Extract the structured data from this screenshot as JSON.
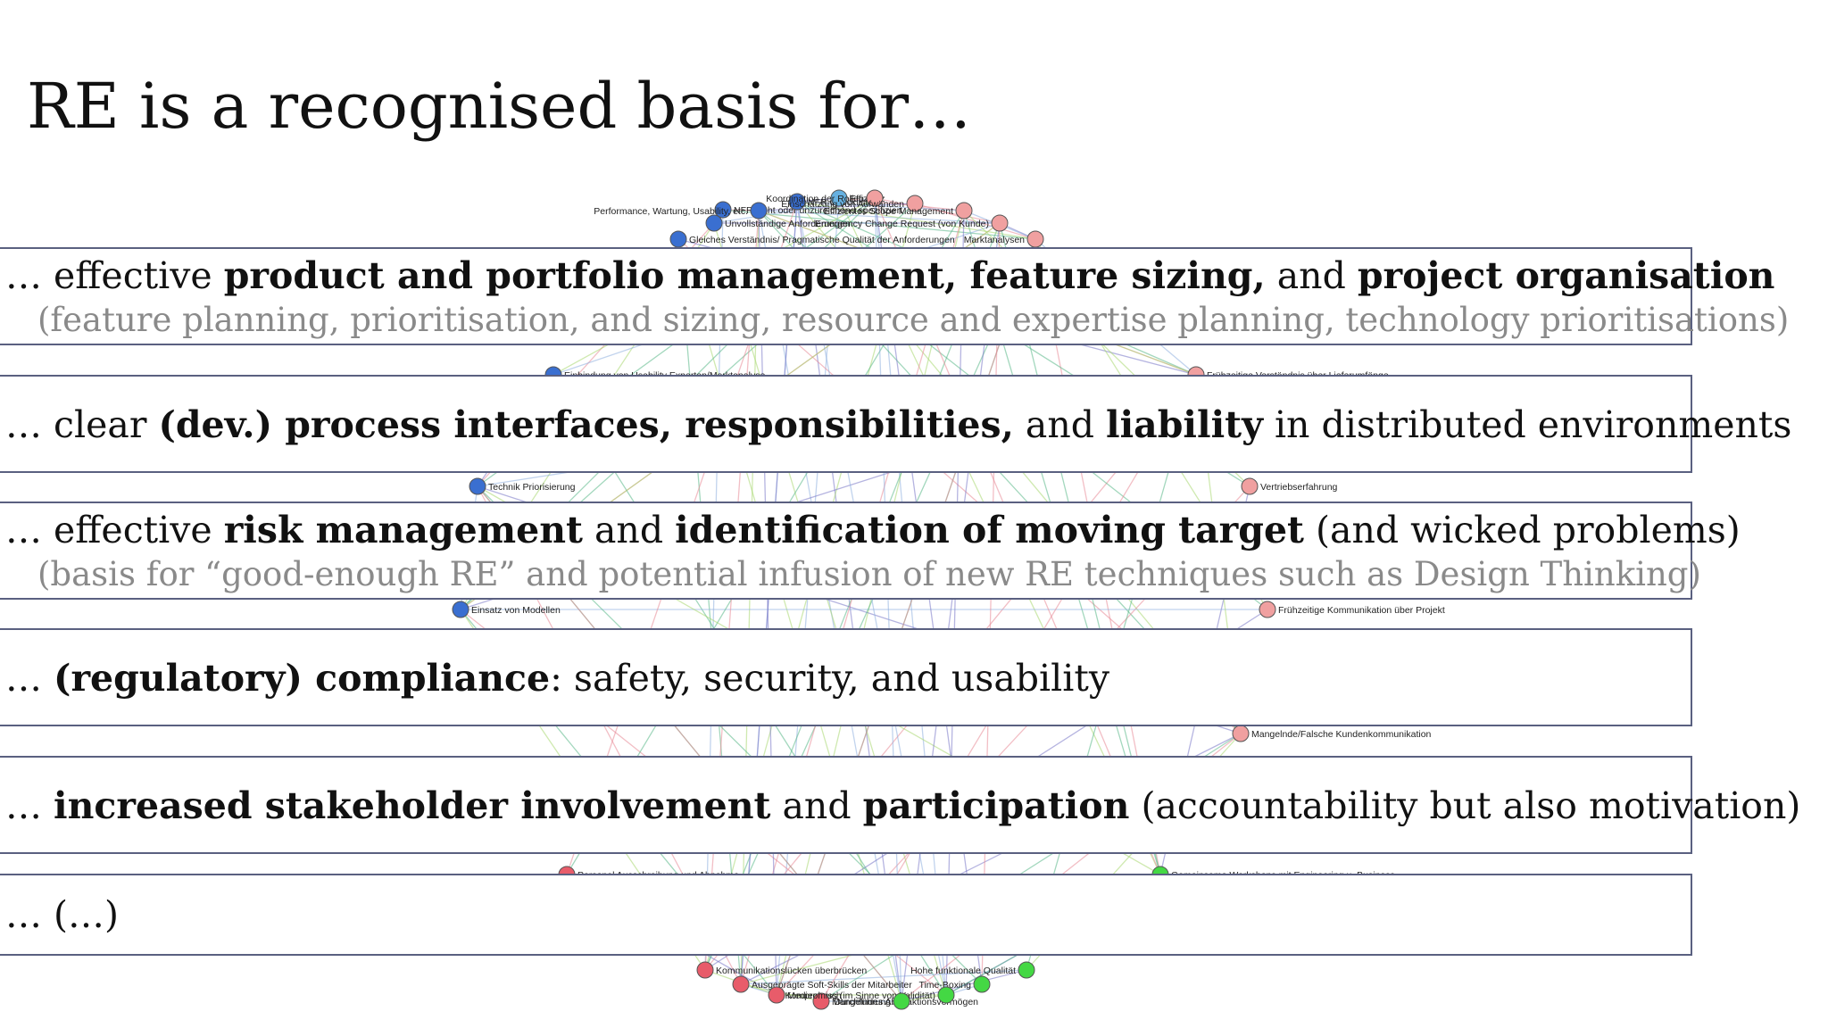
{
  "title": "RE is a recognised basis for…",
  "items": [
    {
      "parts": [
        [
          "… effective ",
          0
        ],
        [
          "product and portfolio management, feature sizing,",
          1
        ],
        [
          " and ",
          0
        ],
        [
          "project organisation",
          1
        ]
      ],
      "sub": "(feature planning, prioritisation, and sizing, resource and expertise planning, technology prioritisations)"
    },
    {
      "parts": [
        [
          "… clear ",
          0
        ],
        [
          "(dev.) process interfaces, responsibilities,",
          1
        ],
        [
          " and ",
          0
        ],
        [
          "liability",
          1
        ],
        [
          " in distributed environments",
          0
        ]
      ],
      "sub": ""
    },
    {
      "parts": [
        [
          "… effective ",
          0
        ],
        [
          "risk management",
          1
        ],
        [
          " and ",
          0
        ],
        [
          "identification of moving target",
          1
        ],
        [
          " (and wicked problems)",
          0
        ]
      ],
      "sub": "(basis for “good-enough RE” and potential infusion of new RE techniques such as Design Thinking)"
    },
    {
      "parts": [
        [
          "… ",
          0
        ],
        [
          "(regulatory) compliance",
          1
        ],
        [
          ": safety, security, and usability",
          0
        ]
      ],
      "sub": ""
    },
    {
      "parts": [
        [
          "… ",
          0
        ],
        [
          "increased stakeholder involvement",
          1
        ],
        [
          " and ",
          0
        ],
        [
          "participation",
          1
        ],
        [
          " (accountability but also motivation)",
          0
        ]
      ],
      "sub": ""
    },
    {
      "parts": [
        [
          "… (…)",
          0
        ]
      ],
      "sub": ""
    }
  ],
  "network": {
    "colors": {
      "blue": "#3a6fd0",
      "red": "#e85c6a",
      "pink": "#f0a0a0",
      "green": "#44d844",
      "lightblue": "#66b0e0"
    },
    "nodes": [
      {
        "label": "NFR nicht oder unzureichend spezifiziert",
        "color": "blue"
      },
      {
        "label": "NFR Checkliste",
        "color": "blue"
      },
      {
        "label": "Effizienz",
        "color": "lightblue"
      },
      {
        "label": "Koordination der Rollen",
        "color": "pink"
      },
      {
        "label": "Einschätzung von Aufwänden",
        "color": "pink"
      },
      {
        "label": "Performance, Wartung, Usability, etc.",
        "color": "blue"
      },
      {
        "label": "Effizientes Scope Management",
        "color": "pink"
      },
      {
        "label": "Unvollständige Anforderungen",
        "color": "blue"
      },
      {
        "label": "Emergency Change Request (von Kunde)",
        "color": "pink"
      },
      {
        "label": "Gleiches Verständnis/ Pragmatische Qualität der Anforderungen",
        "color": "blue"
      },
      {
        "label": "Marktanalysen",
        "color": "pink"
      },
      {
        "label": "Einbindung von Usability Experten/Marktanalyse",
        "color": "blue"
      },
      {
        "label": "Frühzeitige Verständnis über Lieferumfänge",
        "color": "pink"
      },
      {
        "label": "Technik Priorisierung",
        "color": "blue"
      },
      {
        "label": "Vertriebserfahrung",
        "color": "pink"
      },
      {
        "label": "Einsatz von Modellen",
        "color": "blue"
      },
      {
        "label": "Frühzeitige Kommunikation über Projekt",
        "color": "pink"
      },
      {
        "label": "Mangelnde/Falsche Kundenkommunikation",
        "color": "pink"
      },
      {
        "label": "Personal Ausschreibung und Abnahme",
        "color": "red"
      },
      {
        "label": "Gemeinsame Workshops mit Engineering u. Business",
        "color": "green"
      },
      {
        "label": "Kommunikationslücken überbrücken",
        "color": "red"
      },
      {
        "label": "Hohe funktionale Qualität",
        "color": "green"
      },
      {
        "label": "Ausgeprägte Soft-Skills der Mitarbeiter",
        "color": "red"
      },
      {
        "label": "Time-Boxing",
        "color": "green"
      },
      {
        "label": "Medienbruch",
        "color": "red"
      },
      {
        "label": "Mangelndes Abstraktionsvermögen",
        "color": "red"
      },
      {
        "label": "Kompromiss (im Sinne von Validität)",
        "color": "green"
      },
      {
        "label": "Durchführung",
        "color": "green"
      }
    ]
  }
}
